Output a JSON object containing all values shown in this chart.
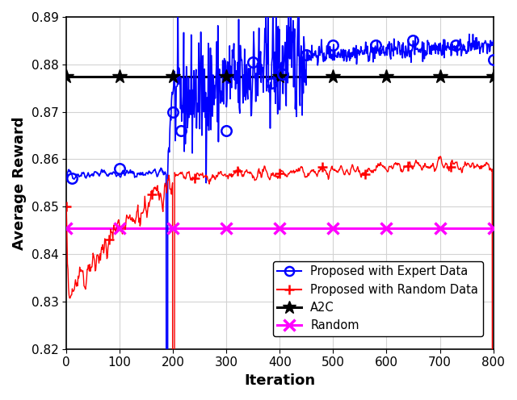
{
  "xlim": [
    0,
    800
  ],
  "ylim": [
    0.82,
    0.89
  ],
  "xlabel": "Iteration",
  "ylabel": "Average Reward",
  "yticks": [
    0.82,
    0.83,
    0.84,
    0.85,
    0.86,
    0.87,
    0.88,
    0.89
  ],
  "xticks": [
    0,
    100,
    200,
    300,
    400,
    500,
    600,
    700,
    800
  ],
  "a2c_value": 0.8775,
  "random_value": 0.8455,
  "blue_marker_x": [
    10,
    100,
    200,
    215,
    300,
    350,
    385,
    405,
    450,
    500,
    580,
    650,
    730,
    800
  ],
  "blue_marker_y": [
    0.856,
    0.858,
    0.87,
    0.866,
    0.866,
    0.8805,
    0.876,
    0.878,
    0.882,
    0.884,
    0.884,
    0.885,
    0.884,
    0.881
  ],
  "a2c_marker_x": [
    0,
    100,
    200,
    300,
    400,
    500,
    600,
    700,
    800
  ],
  "random_marker_x": [
    0,
    100,
    200,
    300,
    400,
    500,
    600,
    700,
    800
  ],
  "colors": {
    "blue": "#0000FF",
    "red": "#FF0000",
    "black": "#000000",
    "magenta": "#FF00FF"
  },
  "legend_labels": [
    "Proposed with Expert Data",
    "Proposed with Random Data",
    "A2C",
    "Random"
  ],
  "background": "#FFFFFF",
  "grid_color": "#D3D3D3"
}
